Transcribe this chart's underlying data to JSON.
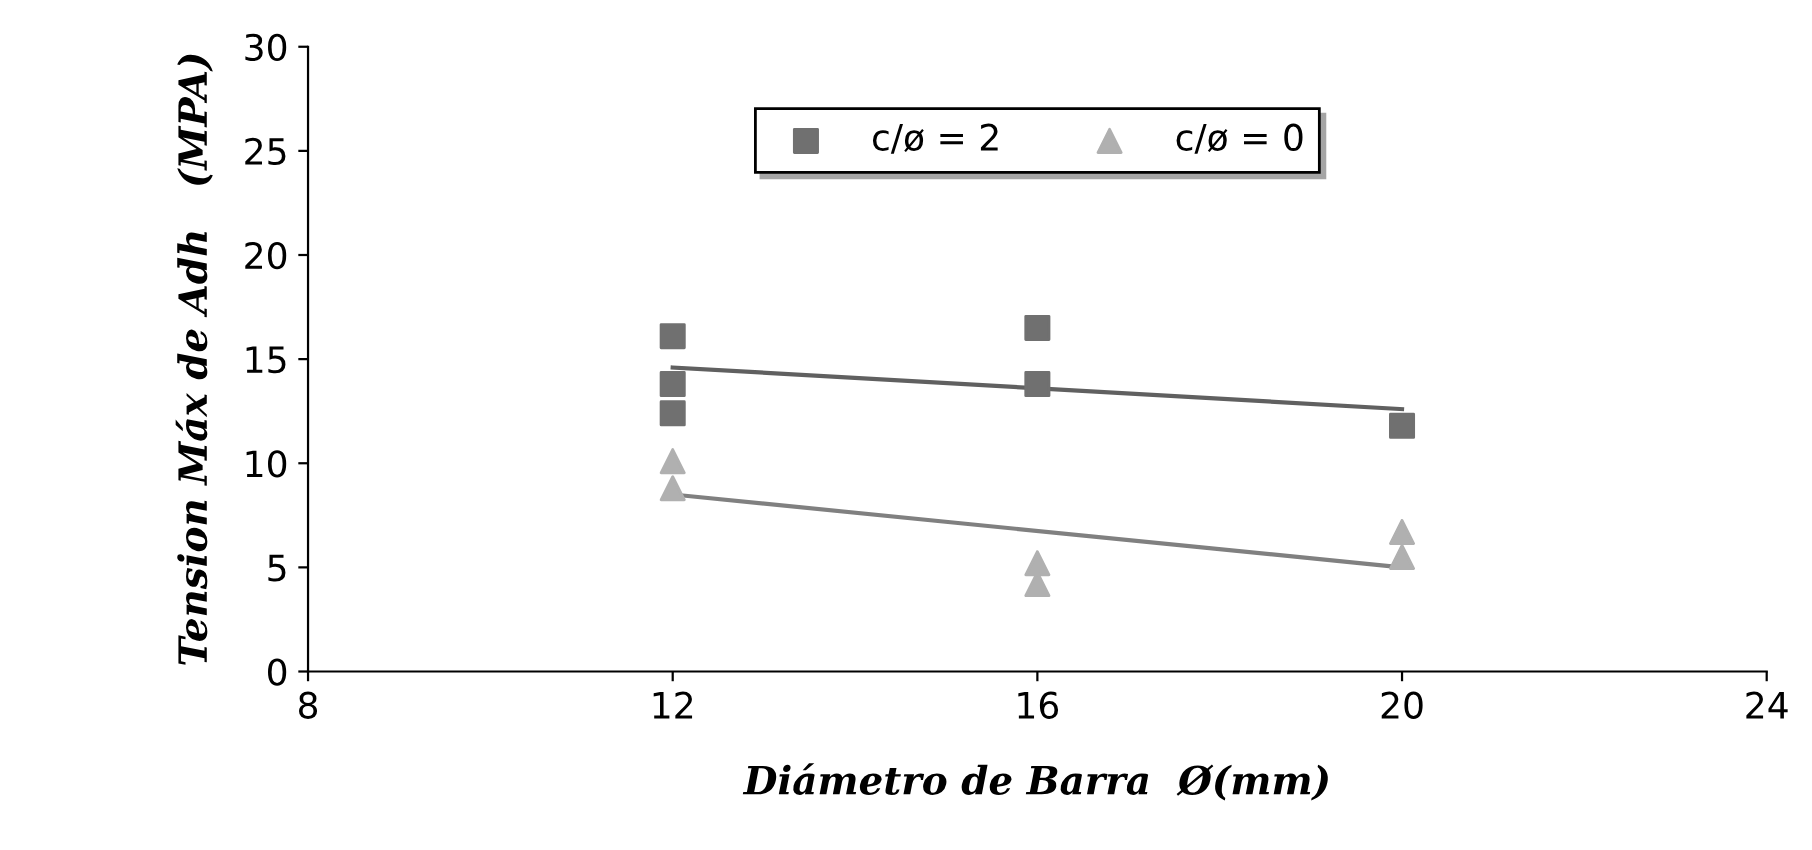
{
  "chart_data": {
    "type": "scatter",
    "xlabel": "Diámetro de Barra  Ø(mm)",
    "ylabel": "Tension Máx de Adh   (MPA)",
    "xlim": [
      8,
      24
    ],
    "xticks": [
      8,
      12,
      16,
      20,
      24
    ],
    "ylim": [
      0,
      30
    ],
    "yticks": [
      0,
      5,
      10,
      15,
      20,
      25,
      30
    ],
    "grid": false,
    "legend": "top",
    "series": [
      {
        "name": "c/ø = 2",
        "color": "#707070",
        "marker": "square",
        "x": [
          12,
          12,
          12,
          16,
          16,
          20
        ],
        "values": [
          16.1,
          13.8,
          12.4,
          16.5,
          13.8,
          11.8
        ]
      },
      {
        "name": "c/ø = 0",
        "color": "#b0b0b0",
        "marker": "triangle",
        "x": [
          12,
          12,
          16,
          16,
          20,
          20
        ],
        "values": [
          10.1,
          8.8,
          5.2,
          4.2,
          6.7,
          5.5
        ]
      },
      {
        "type": "line",
        "color": "#606060",
        "marker": "none",
        "x": [
          12,
          20
        ],
        "values": [
          14.6,
          12.6
        ]
      },
      {
        "type": "line",
        "color": "#808080",
        "marker": "none",
        "x": [
          12,
          20
        ],
        "values": [
          8.5,
          5.0
        ]
      }
    ]
  }
}
